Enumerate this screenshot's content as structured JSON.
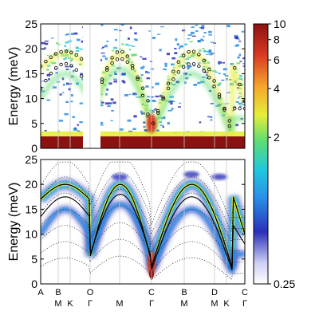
{
  "colors": {
    "intensity_colormap": [
      "#ffffff",
      "#2b30b8",
      "#2a8fe8",
      "#21c8dc",
      "#5fdc73",
      "#e6ee3b",
      "#f6a52a",
      "#d83a22",
      "#8c1212"
    ],
    "curve": "#000000",
    "guide_line": "#bdbdbd",
    "frame": "#000000"
  },
  "chart_data": [
    {
      "panel": "top",
      "type": "heatmap",
      "title": "",
      "xlabel": "",
      "ylabel": "Energy (meV)",
      "ylim": [
        0,
        25
      ],
      "yticks": [
        0,
        5,
        10,
        15,
        20,
        25
      ],
      "ytick_labels": [
        "0",
        "5",
        "10",
        "15",
        "20",
        "25"
      ],
      "grid": false,
      "overlay": "open circles (measured peak positions)",
      "xtick_labels": []
    },
    {
      "panel": "bottom",
      "type": "heatmap",
      "title": "",
      "xlabel": "",
      "ylabel": "Energy (meV)",
      "ylim": [
        0,
        25
      ],
      "yticks": [
        0,
        5,
        10,
        15,
        20,
        25
      ],
      "ytick_labels": [
        "0",
        "5",
        "10",
        "15",
        "20",
        "25"
      ],
      "grid": false,
      "overlay": "solid black dispersion curves and dotted calculated modes",
      "path_labels_top": [
        "A",
        "B",
        "O",
        "C",
        "B",
        "D",
        "C"
      ],
      "path_labels_bottom": [
        "M",
        "K",
        "Γ",
        "M",
        "Γ",
        "M",
        "M",
        "K",
        "Γ"
      ]
    },
    {
      "panel": "colorbar",
      "type": "colorbar",
      "scale": "log",
      "range": [
        0.25,
        10
      ],
      "ticks": [
        10,
        8,
        6,
        4,
        2,
        0.25
      ],
      "tick_labels": [
        "10",
        "8",
        "6",
        "4",
        "2",
        "0.25"
      ]
    }
  ]
}
